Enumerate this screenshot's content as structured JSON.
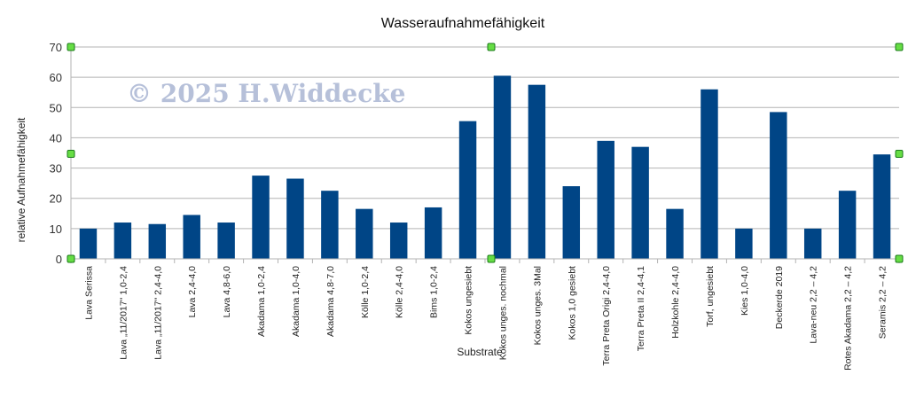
{
  "chart_data": {
    "type": "bar",
    "title": "Wasseraufnahmefähigkeit",
    "xlabel": "Substrate",
    "ylabel": "relative Aufnahmefähigkeit",
    "ylim": [
      0,
      70
    ],
    "yticks": [
      0,
      10,
      20,
      30,
      40,
      50,
      60,
      70
    ],
    "grid": true,
    "legend": "none",
    "bar_color": "#004586",
    "handle_color": "#66dd44",
    "watermark": "© 2025 H.Widdecke",
    "categories": [
      "Lava Serissa",
      "Lava „11/2017\" 1,0-2,4",
      "Lava „11/2017\" 2,4-4,0",
      "Lava 2,4-4,0",
      "Lava 4,8-6,0",
      "Akadama 1,0-2,4",
      "Akadama 1,0-4,0",
      "Akadama 4,8-7,0",
      "Kölle 1,0-2,4",
      "Kölle 2,4-4,0",
      "Bims 1,0-2,4",
      "Kokos ungesiebt",
      "Kokos unges. nochmal",
      "Kokos unges. 3Mal",
      "Kokos 1,0 gesiebt",
      "Terra Preta Origi 2,4-4,0",
      "Terra Preta II 2,4-4,1",
      "Holzkohle 2,4-4,0",
      "Torf, ungesiebt",
      "Kies 1,0-4,0",
      "Deckerde 2019",
      "Lava-neu 2,2 – 4,2",
      "Rotes Akadama 2,2 – 4,2",
      "Seramis 2,2 – 4,2"
    ],
    "values": [
      10,
      12,
      11.5,
      14.5,
      12,
      27.5,
      26.5,
      22.5,
      16.5,
      12,
      17,
      45.5,
      60.5,
      57.5,
      24,
      39,
      37,
      16.5,
      56,
      10,
      48.5,
      10,
      22.5,
      34.5
    ]
  }
}
